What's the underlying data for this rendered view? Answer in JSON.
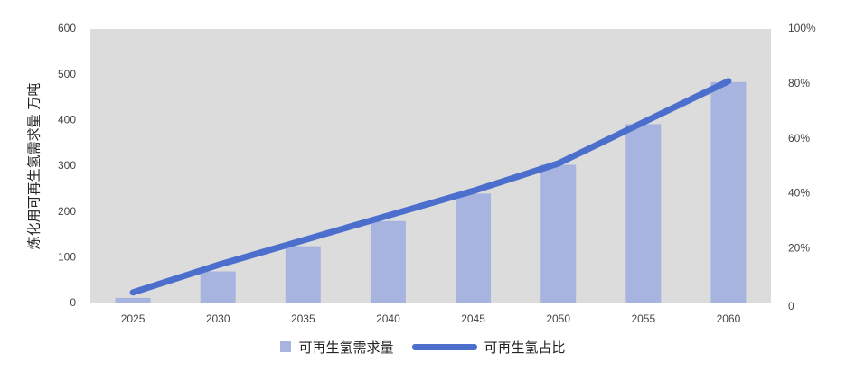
{
  "chart_data": {
    "type": "bar",
    "categories": [
      "2025",
      "2030",
      "2035",
      "2040",
      "2045",
      "2050",
      "2055",
      "2060"
    ],
    "series": [
      {
        "name": "可再生氢需求量",
        "type": "bar",
        "axis": "left",
        "values": [
          12,
          70,
          125,
          180,
          240,
          303,
          392,
          484
        ],
        "color": "#a7b4e0"
      },
      {
        "name": "可再生氢占比",
        "type": "line",
        "axis": "right",
        "values": [
          0.04,
          0.14,
          0.23,
          0.32,
          0.41,
          0.51,
          0.66,
          0.81
        ],
        "color": "#4c6fcd"
      }
    ],
    "ylabel": "炼化用可再生氢需求量 万吨",
    "ylim": [
      0,
      600
    ],
    "yticks": [
      "0",
      "100",
      "200",
      "300",
      "400",
      "500",
      "600"
    ],
    "y2lim": [
      0,
      1
    ],
    "y2ticks": [
      "0",
      "20%",
      "40%",
      "60%",
      "80%",
      "100%"
    ],
    "plot_background": "#dcdcdc",
    "grid": false,
    "legend_position": "bottom"
  }
}
